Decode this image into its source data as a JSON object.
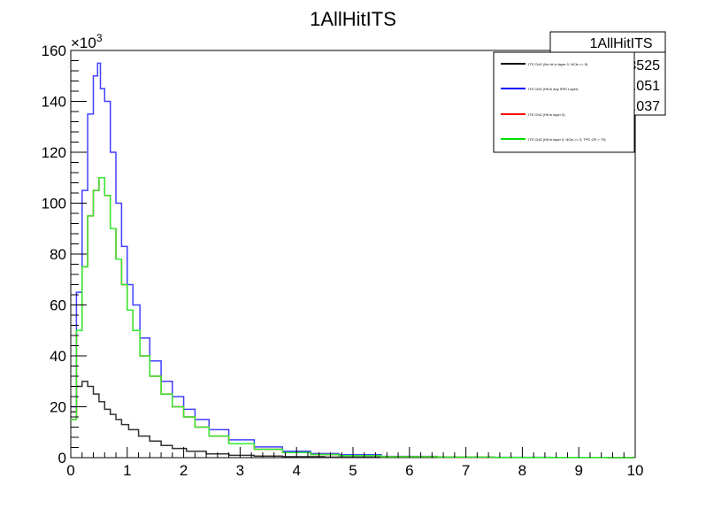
{
  "chart_data": {
    "type": "line",
    "title": "1AllHitITS",
    "xlabel": "",
    "ylabel": "",
    "y_multiplier_label": "×10",
    "y_multiplier_exponent": "3",
    "xlim": [
      0,
      10
    ],
    "ylim": [
      0,
      160000
    ],
    "x_ticks": [
      "0",
      "1",
      "2",
      "3",
      "4",
      "5",
      "6",
      "7",
      "8",
      "9",
      "10"
    ],
    "y_ticks": [
      "0",
      "20",
      "40",
      "60",
      "80",
      "100",
      "120",
      "140",
      "160"
    ],
    "x_tick_values": [
      0,
      1,
      2,
      3,
      4,
      5,
      6,
      7,
      8,
      9,
      10
    ],
    "y_tick_values": [
      0,
      20000,
      40000,
      60000,
      80000,
      100000,
      120000,
      140000,
      160000
    ],
    "legend_position": "top-right",
    "stats_box": {
      "title": "1AllHitITS",
      "values": [
        "953525",
        "1.051",
        "1.037"
      ]
    },
    "series": [
      {
        "name": "ITS Chi2 (No hit in layer 0, NCls >= 5)",
        "color": "#000000",
        "x": [
          0.05,
          0.15,
          0.25,
          0.35,
          0.45,
          0.55,
          0.65,
          0.75,
          0.85,
          0.95,
          1.1,
          1.3,
          1.5,
          1.7,
          1.9,
          2.2,
          2.6,
          3.0,
          3.5,
          4.0,
          5.0,
          6.0,
          7.0,
          8.0,
          9.0,
          10.0
        ],
        "y": [
          18000,
          28000,
          30000,
          28000,
          25000,
          22000,
          19000,
          17000,
          15000,
          13000,
          11000,
          8500,
          6500,
          4800,
          3600,
          2500,
          1500,
          900,
          600,
          400,
          200,
          120,
          80,
          50,
          30,
          20
        ]
      },
      {
        "name": "ITS Chi2 (Hit in any SPD Layer)",
        "color": "#0000ff",
        "x": [
          0.05,
          0.15,
          0.25,
          0.35,
          0.45,
          0.5,
          0.55,
          0.65,
          0.75,
          0.85,
          0.95,
          1.05,
          1.15,
          1.3,
          1.5,
          1.7,
          1.9,
          2.1,
          2.3,
          2.6,
          3.0,
          3.5,
          4.0,
          4.5,
          5.0,
          6.0,
          7.0,
          8.0,
          9.0,
          10.0
        ],
        "y": [
          20000,
          65000,
          105000,
          135000,
          150000,
          155000,
          145000,
          140000,
          120000,
          100000,
          83000,
          68000,
          60000,
          47000,
          38000,
          30000,
          24000,
          19000,
          15000,
          11000,
          7000,
          4200,
          2500,
          1600,
          1100,
          500,
          250,
          150,
          80,
          40
        ]
      },
      {
        "name": "ITS Chi2 (Hit in layer 0)",
        "color": "#ff0000",
        "x": [
          0.05,
          0.15,
          0.25,
          0.35,
          0.45,
          0.55,
          0.65,
          0.75,
          0.85,
          0.95,
          1.05,
          1.15,
          1.3,
          1.5,
          1.7,
          1.9,
          2.1,
          2.3,
          2.6,
          3.0,
          3.5,
          4.0,
          4.5,
          5.0,
          6.0,
          7.0,
          8.0,
          9.0,
          10.0
        ],
        "y": [
          15000,
          50000,
          75000,
          95000,
          105000,
          110000,
          103000,
          90000,
          78000,
          68000,
          58000,
          50000,
          40000,
          32000,
          25000,
          20000,
          16000,
          12000,
          8500,
          5500,
          3300,
          2000,
          1200,
          800,
          400,
          200,
          100,
          60,
          30
        ]
      },
      {
        "name": "ITS Chi2 (Hit in layer 0, NCls >= 3, TPC CR > 70)",
        "color": "#00dd00",
        "x": [
          0.05,
          0.15,
          0.25,
          0.35,
          0.45,
          0.55,
          0.65,
          0.75,
          0.85,
          0.95,
          1.05,
          1.15,
          1.3,
          1.5,
          1.7,
          1.9,
          2.1,
          2.3,
          2.6,
          3.0,
          3.5,
          4.0,
          4.5,
          5.0,
          6.0,
          7.0,
          8.0,
          9.0,
          10.0
        ],
        "y": [
          15000,
          50000,
          75000,
          95000,
          105000,
          110000,
          103000,
          90000,
          78000,
          68000,
          58000,
          50000,
          40000,
          32000,
          25000,
          20000,
          16000,
          12000,
          8500,
          5500,
          3300,
          2000,
          1200,
          800,
          400,
          200,
          100,
          60,
          30
        ]
      }
    ]
  },
  "colors": {
    "frame": "#000000",
    "series_black": "#333333",
    "series_blue": "#4040ff",
    "series_red": "#ff0000",
    "series_green": "#33ee33"
  }
}
